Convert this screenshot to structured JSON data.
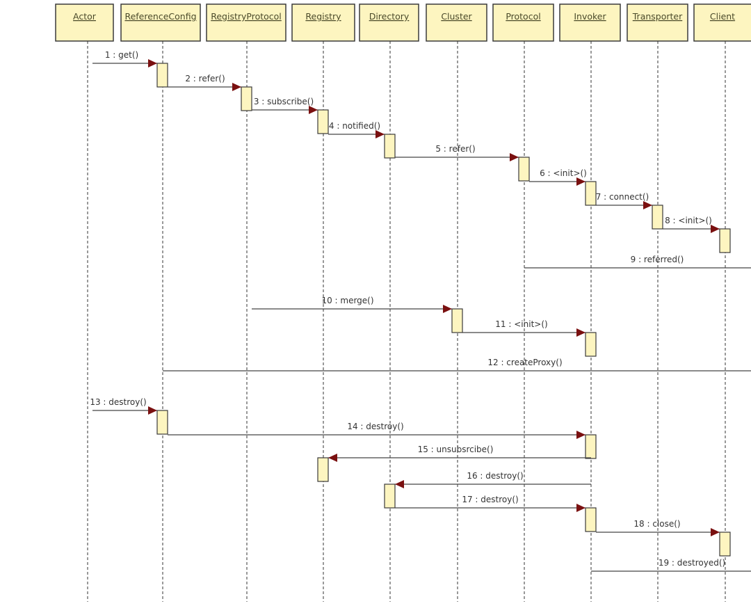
{
  "diagram_type": "uml-sequence",
  "lifelines": [
    {
      "name": "Actor"
    },
    {
      "name": "ReferenceConfig"
    },
    {
      "name": "RegistryProtocol"
    },
    {
      "name": "Registry"
    },
    {
      "name": "Directory"
    },
    {
      "name": "Cluster"
    },
    {
      "name": "Protocol"
    },
    {
      "name": "Invoker"
    },
    {
      "name": "Transporter"
    },
    {
      "name": "Client"
    }
  ],
  "messages": [
    {
      "label": "1 : get()",
      "from": 0,
      "to": 1
    },
    {
      "label": "2 : refer()",
      "from": 1,
      "to": 2
    },
    {
      "label": "3 : subscribe()",
      "from": 2,
      "to": 3
    },
    {
      "label": "4 : notified()",
      "from": 3,
      "to": 4
    },
    {
      "label": "5 : refer()",
      "from": 4,
      "to": 6
    },
    {
      "label": "6 : <init>()",
      "from": 6,
      "to": 7
    },
    {
      "label": "7 : connect()",
      "from": 7,
      "to": 8
    },
    {
      "label": "8 : <init>()",
      "from": 8,
      "to": 9
    },
    {
      "label": "9 : referred()",
      "from": 6,
      "to": null
    },
    {
      "label": "10 : merge()",
      "from": 2,
      "to": 5
    },
    {
      "label": "11 : <init>()",
      "from": 5,
      "to": 7
    },
    {
      "label": "12 : createProxy()",
      "from": 1,
      "to": null
    },
    {
      "label": "13 : destroy()",
      "from": 0,
      "to": 1
    },
    {
      "label": "14 : destroy()",
      "from": 1,
      "to": 7
    },
    {
      "label": "15 : unsubsrcibe()",
      "from": 7,
      "to": 3
    },
    {
      "label": "16 : destroy()",
      "from": 7,
      "to": 4
    },
    {
      "label": "17 : destroy()",
      "from": 4,
      "to": 7
    },
    {
      "label": "18 : close()",
      "from": 7,
      "to": 9
    },
    {
      "label": "19 : destroyed()",
      "from": 7,
      "to": null
    }
  ],
  "colors": {
    "box_fill": "#fdf5c0",
    "arrow": "#7a1010",
    "line": "#444444"
  }
}
